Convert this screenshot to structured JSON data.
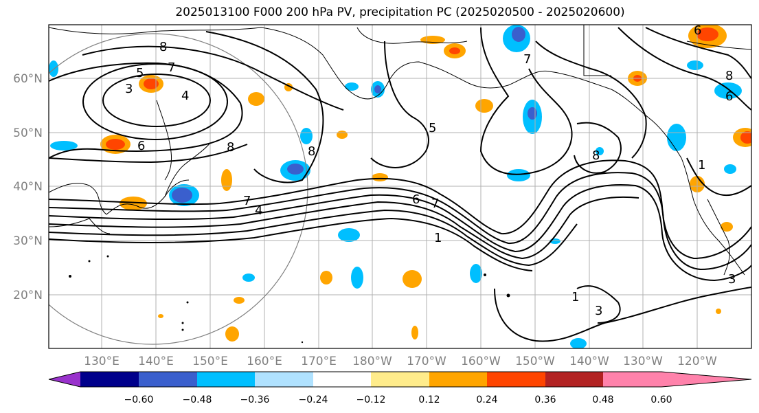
{
  "title": "2025013100 F000 200 hPa PV, precipitation PC (2025020500 - 2025020600)",
  "lat_labels": [
    "60°N",
    "50°N",
    "40°N",
    "30°N",
    "20°N"
  ],
  "lon_labels": [
    "130°E",
    "140°E",
    "150°E",
    "160°E",
    "170°E",
    "180°W",
    "170°W",
    "160°W",
    "150°W",
    "140°W",
    "130°W",
    "120°W"
  ],
  "colorbar": {
    "ticks": [
      "−0.60",
      "−0.48",
      "−0.36",
      "−0.24",
      "−0.12",
      "0.12",
      "0.24",
      "0.36",
      "0.48",
      "0.60"
    ],
    "colors": [
      "#9932cc",
      "#00008b",
      "#3a5fcd",
      "#00bfff",
      "#b0e2ff",
      "#ffffff",
      "#ffec8b",
      "#ffa500",
      "#ff4500",
      "#b22222",
      "#ff82ab"
    ]
  },
  "contour_labels": [
    "8",
    "7",
    "5",
    "3",
    "4",
    "6",
    "8",
    "8",
    "7",
    "4",
    "6",
    "7",
    "7",
    "5",
    "8",
    "3",
    "1",
    "1",
    "6",
    "8",
    "6",
    "1",
    "3"
  ]
}
